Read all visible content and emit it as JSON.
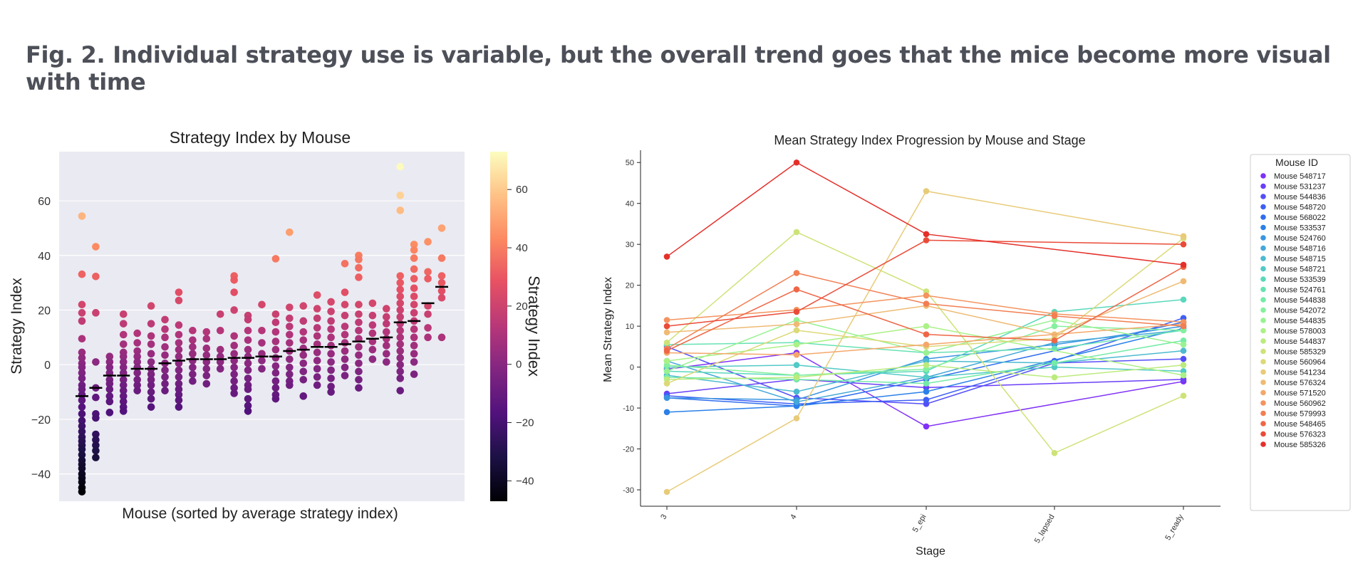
{
  "page": {
    "figure_title": "Fig. 2. Individual strategy use is variable, but the overall trend goes that the mice become more visual with time"
  },
  "chart_data": [
    {
      "type": "scatter",
      "title": "Strategy Index by Mouse",
      "xlabel": "Mouse (sorted by average strategy index)",
      "ylabel": "Strategy Index",
      "ylim": [
        -50,
        78
      ],
      "yticks": [
        -40,
        -20,
        0,
        20,
        40,
        60
      ],
      "grid": true,
      "background": "#eaeaf2",
      "colormap": "magma",
      "colorbar": {
        "label": "Strategy Index",
        "range": [
          -47,
          73
        ],
        "ticks": [
          -40,
          -20,
          0,
          20,
          40,
          60
        ]
      },
      "mean_marker_color": "#000000",
      "mice": [
        {
          "mean": -11.5,
          "values": [
            54.4,
            33.1,
            22.0,
            19.0,
            16.0,
            9.5,
            4.5,
            2.5,
            0.5,
            -1.0,
            -3.0,
            -5.0,
            -7.5,
            -9.0,
            -11.0,
            -13.0,
            -15.5,
            -18.0,
            -20.5,
            -22.5,
            -24.5,
            -26.5,
            -28.0,
            -29.5,
            -31.0,
            -33.0,
            -35.0,
            -36.5,
            -38.0,
            -40.0,
            -41.5,
            -43.0,
            -45.0,
            -46.5
          ]
        },
        {
          "mean": -8.5,
          "values": [
            43.2,
            32.3,
            19.0,
            1.0,
            -8.5,
            -12.0,
            -18.0,
            -19.5,
            -25.5,
            -27.5,
            -29.5,
            -31.5,
            -34.0
          ]
        },
        {
          "mean": -4.0,
          "values": [
            3.0,
            1.0,
            -1.0,
            -3.0,
            -5.5,
            -7.0,
            -9.0,
            -11.5,
            -13.5,
            -17.5
          ]
        },
        {
          "mean": -4.0,
          "values": [
            18.5,
            15.0,
            11.0,
            7.5,
            4.5,
            3.0,
            1.0,
            -1.0,
            -3.0,
            -5.5,
            -7.5,
            -9.5,
            -11.5,
            -13.5,
            -15.5,
            -17.0
          ]
        },
        {
          "mean": -1.5,
          "values": [
            11.5,
            8.0,
            5.0,
            3.0,
            1.0,
            -1.0,
            -3.0,
            -5.5,
            -7.5,
            -9.5
          ]
        },
        {
          "mean": -1.5,
          "values": [
            21.5,
            15.0,
            10.5,
            7.5,
            4.0,
            1.0,
            -1.5,
            -3.5,
            -5.5,
            -7.5,
            -10.0,
            -12.5,
            -15.5
          ]
        },
        {
          "mean": 0.5,
          "values": [
            16.5,
            13.0,
            10.0,
            6.5,
            3.5,
            0.5,
            -2.0,
            -4.5,
            -7.0,
            -9.5
          ]
        },
        {
          "mean": 1.5,
          "values": [
            26.5,
            23.5,
            14.5,
            11.0,
            8.0,
            5.5,
            3.0,
            0.5,
            -2.0,
            -4.5,
            -7.0,
            -9.0,
            -11.0,
            -13.0,
            -15.5
          ]
        },
        {
          "mean": 2.0,
          "values": [
            12.5,
            9.0,
            6.5,
            4.0,
            1.5,
            -1.0,
            -3.5,
            -6.0
          ]
        },
        {
          "mean": 2.0,
          "values": [
            12.0,
            9.5,
            6.0,
            3.5,
            1.0,
            -1.5,
            -4.0,
            -7.0
          ]
        },
        {
          "mean": 2.0,
          "values": [
            18.5,
            12.5,
            5.5,
            3.0,
            1.0,
            -1.5
          ]
        },
        {
          "mean": 2.5,
          "values": [
            32.5,
            31.0,
            26.5,
            20.0,
            10.5,
            7.0,
            4.0,
            1.5,
            -1.0,
            -3.5,
            -6.0,
            -8.5,
            -10.5
          ]
        },
        {
          "mean": 2.5,
          "values": [
            18.0,
            16.5,
            12.5,
            9.0,
            5.5,
            3.0,
            0.5,
            -2.0,
            -5.0,
            -7.5,
            -9.0,
            -12.5,
            -15.0,
            -17.0
          ]
        },
        {
          "mean": 3.0,
          "values": [
            22.0,
            12.5,
            8.0,
            4.0,
            1.5,
            -1.5
          ]
        },
        {
          "mean": 3.0,
          "values": [
            38.8,
            18.5,
            15.5,
            12.0,
            8.5,
            5.5,
            2.5,
            -0.5,
            -3.0,
            -6.0,
            -8.5,
            -11.0,
            -12.5
          ]
        },
        {
          "mean": 5.0,
          "values": [
            48.5,
            21.0,
            17.0,
            14.0,
            11.0,
            8.0,
            5.0,
            2.0,
            -1.0,
            -3.5,
            -6.0,
            -7.5
          ]
        },
        {
          "mean": 5.5,
          "values": [
            21.5,
            16.0,
            12.0,
            9.0,
            6.0,
            3.5,
            0.5,
            -2.5,
            -5.5,
            -11.5
          ]
        },
        {
          "mean": 6.5,
          "values": [
            25.5,
            20.5,
            17.0,
            13.5,
            10.5,
            7.5,
            4.5,
            1.5,
            -1.5,
            -4.5,
            -7.5
          ]
        },
        {
          "mean": 6.5,
          "values": [
            23.0,
            19.5,
            16.0,
            13.0,
            10.0,
            7.0,
            4.0,
            1.0,
            -2.0,
            -5.0,
            -8.0,
            -10.0
          ]
        },
        {
          "mean": 7.5,
          "values": [
            37.0,
            26.5,
            22.0,
            18.0,
            14.0,
            11.0,
            8.0,
            5.0,
            2.0,
            -1.0,
            -4.0
          ]
        },
        {
          "mean": 8.5,
          "values": [
            40.0,
            38.5,
            35.5,
            32.0,
            22.0,
            18.5,
            15.5,
            12.5,
            9.5,
            6.5,
            3.5,
            0.5,
            -2.5,
            -5.5,
            -8.5
          ]
        },
        {
          "mean": 9.5,
          "values": [
            22.5,
            18.0,
            14.5,
            11.5,
            8.5,
            5.5,
            2.0
          ]
        },
        {
          "mean": 10.0,
          "values": [
            20.5,
            17.5,
            15.0,
            12.0,
            9.5,
            7.0,
            4.0,
            1.0
          ]
        },
        {
          "mean": 15.5,
          "values": [
            72.5,
            62.0,
            56.5,
            32.5,
            30.0,
            27.5,
            25.0,
            22.5,
            20.0,
            17.5,
            15.0,
            12.5,
            10.0,
            7.5,
            5.0,
            2.5,
            0.0,
            -2.5,
            -5.0,
            -9.5
          ]
        },
        {
          "mean": 16.0,
          "values": [
            44.0,
            42.0,
            39.0,
            35.0,
            31.5,
            28.0,
            25.0,
            22.0,
            19.0,
            16.0,
            13.0,
            10.0,
            7.0,
            4.0,
            1.0,
            -3.5
          ]
        },
        {
          "mean": 22.5,
          "values": [
            45.0,
            34.0,
            31.5,
            21.5,
            18.5,
            13.5,
            10.0
          ]
        },
        {
          "mean": 28.5,
          "values": [
            50.0,
            39.0,
            32.5,
            30.0,
            27.0,
            24.5,
            10.0
          ]
        }
      ]
    },
    {
      "type": "line",
      "title": "Mean Strategy Index Progression by Mouse and Stage",
      "xlabel": "Stage",
      "ylabel": "Mean Strategy Index",
      "categories": [
        "3",
        "4",
        "5_epi",
        "5_lapsed",
        "5_ready"
      ],
      "ylim": [
        -34,
        53
      ],
      "yticks": [
        -30,
        -20,
        -10,
        0,
        10,
        20,
        30,
        40,
        50
      ],
      "grid": false,
      "legend": {
        "title": "Mouse ID",
        "placement": "right"
      },
      "series": [
        {
          "name": "Mouse 548717",
          "color": "#8031f7",
          "values": [
            -0.5,
            3.5,
            -14.5,
            null,
            -3.5
          ]
        },
        {
          "name": "Mouse 531237",
          "color": "#6a3ff8",
          "values": [
            -6.5,
            -3.0,
            -5.0,
            null,
            -3.0
          ]
        },
        {
          "name": "Mouse 544836",
          "color": "#544ef9",
          "values": [
            5.0,
            -7.5,
            -9.0,
            1.0,
            2.0
          ]
        },
        {
          "name": "Mouse 548720",
          "color": "#3f5ff5",
          "values": [
            -7.0,
            -9.0,
            -8.0,
            1.5,
            12.0
          ]
        },
        {
          "name": "Mouse 568022",
          "color": "#2e6eef",
          "values": [
            -7.5,
            -9.5,
            -3.0,
            null,
            11.0
          ]
        },
        {
          "name": "Mouse 533537",
          "color": "#2a80e8",
          "values": [
            -11.0,
            -9.5,
            -6.0,
            null,
            9.5
          ]
        },
        {
          "name": "Mouse 524760",
          "color": "#3a95e0",
          "values": [
            -7.5,
            -8.0,
            2.0,
            5.5,
            10.0
          ]
        },
        {
          "name": "Mouse 548716",
          "color": "#44a8d8",
          "values": [
            1.5,
            -8.5,
            -2.5,
            6.0,
            9.0
          ]
        },
        {
          "name": "Mouse 548715",
          "color": "#4cbad0",
          "values": [
            -2.0,
            -6.0,
            1.5,
            1.0,
            4.0
          ]
        },
        {
          "name": "Mouse 548721",
          "color": "#52cac6",
          "values": [
            0.0,
            0.5,
            -2.5,
            0.0,
            -1.0
          ]
        },
        {
          "name": "Mouse 533539",
          "color": "#5ad8bc",
          "values": [
            -1.0,
            -2.0,
            -1.0,
            13.5,
            16.5
          ]
        },
        {
          "name": "Mouse 524761",
          "color": "#66e2b2",
          "values": [
            5.5,
            6.0,
            3.5,
            4.5,
            9.0
          ]
        },
        {
          "name": "Mouse 544838",
          "color": "#74eba7",
          "values": [
            -2.5,
            -3.0,
            -4.0,
            1.0,
            6.5
          ]
        },
        {
          "name": "Mouse 542072",
          "color": "#85f09e",
          "values": [
            0.5,
            -2.0,
            -0.5,
            10.0,
            9.0
          ]
        },
        {
          "name": "Mouse 544835",
          "color": "#98f292",
          "values": [
            -1.0,
            11.5,
            3.5,
            11.5,
            5.5
          ]
        },
        {
          "name": "Mouse 578003",
          "color": "#aaf186",
          "values": [
            1.5,
            5.5,
            10.0,
            null,
            -2.0
          ]
        },
        {
          "name": "Mouse 544837",
          "color": "#bbeb7d",
          "values": [
            -3.0,
            -2.5,
            0.5,
            -2.5,
            0.5
          ]
        },
        {
          "name": "Mouse 585329",
          "color": "#cde378",
          "values": [
            6.0,
            33.0,
            18.5,
            -21.0,
            -7.0
          ]
        },
        {
          "name": "Mouse 560964",
          "color": "#dcd978",
          "values": [
            -4.0,
            9.0,
            5.0,
            7.0,
            31.5
          ]
        },
        {
          "name": "Mouse 541234",
          "color": "#e8cb79",
          "values": [
            -30.5,
            -12.5,
            43.0,
            null,
            32.0
          ]
        },
        {
          "name": "Mouse 576324",
          "color": "#efba74",
          "values": [
            8.5,
            10.5,
            15.0,
            8.0,
            21.0
          ]
        },
        {
          "name": "Mouse 571520",
          "color": "#f4a76a",
          "values": [
            3.5,
            3.0,
            5.5,
            null,
            10.5
          ]
        },
        {
          "name": "Mouse 560962",
          "color": "#f4935e",
          "values": [
            11.5,
            14.0,
            17.5,
            13.0,
            11.0
          ]
        },
        {
          "name": "Mouse 579993",
          "color": "#f27e52",
          "values": [
            4.5,
            23.0,
            15.5,
            12.5,
            10.0
          ]
        },
        {
          "name": "Mouse 548465",
          "color": "#ef6646",
          "values": [
            4.0,
            19.0,
            8.0,
            6.5,
            24.5
          ]
        },
        {
          "name": "Mouse 576323",
          "color": "#ea4b38",
          "values": [
            10.0,
            13.5,
            31.0,
            null,
            30.0
          ]
        },
        {
          "name": "Mouse 585326",
          "color": "#e5302a",
          "values": [
            27.0,
            50.0,
            32.5,
            null,
            25.0
          ]
        }
      ]
    }
  ]
}
